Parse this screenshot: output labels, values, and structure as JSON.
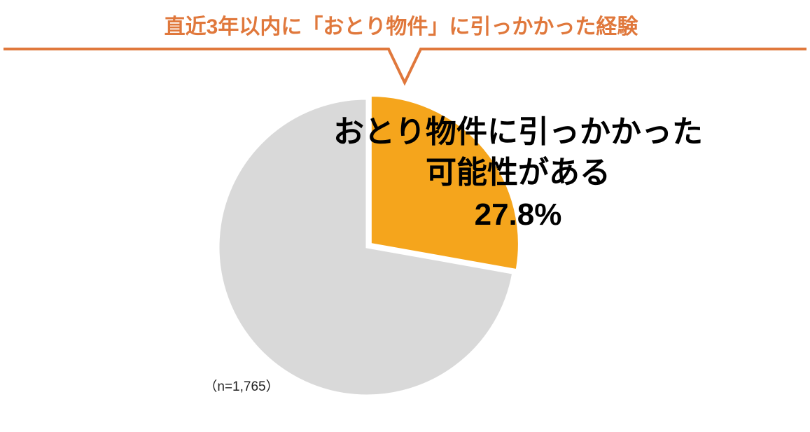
{
  "chart_data": {
    "type": "pie",
    "title": "直近3年以内に「おとり物件」に引っかかった経験",
    "categories": [
      "おとり物件に引っかかった\n可能性がある",
      null
    ],
    "values": [
      27.8,
      72.2
    ],
    "value_labels": [
      "27.8%",
      null
    ],
    "colors": [
      "#f5a51c",
      "#d9d9d9"
    ],
    "note": "（n=1,765）"
  }
}
